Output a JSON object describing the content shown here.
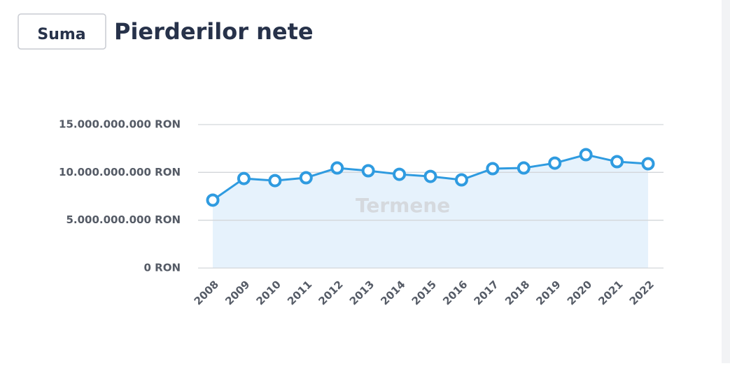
{
  "chart_data": {
    "type": "line",
    "button": "Suma",
    "title": "Pierderilor nete",
    "watermark": "Termene",
    "x": [
      "2008",
      "2009",
      "2010",
      "2011",
      "2012",
      "2013",
      "2014",
      "2015",
      "2016",
      "2017",
      "2018",
      "2019",
      "2020",
      "2021",
      "2022"
    ],
    "series": [
      {
        "color": "#2f9be0",
        "values": [
          7100000000,
          9360000000,
          9140000000,
          9440000000,
          10460000000,
          10170000000,
          9800000000,
          9580000000,
          9220000000,
          10390000000,
          10460000000,
          10970000000,
          11850000000,
          11120000000,
          10900000000
        ]
      }
    ],
    "area": true,
    "area_color": "#e6f2fc",
    "ylim": [
      0,
      15000000000
    ],
    "yticks": [
      {
        "value": 0,
        "label": "0 RON"
      },
      {
        "value": 5000000000,
        "label": "5.000.000.000 RON"
      },
      {
        "value": 10000000000,
        "label": "10.000.000.000 RON"
      },
      {
        "value": 15000000000,
        "label": "15.000.000.000 RON"
      }
    ],
    "grid": true
  }
}
